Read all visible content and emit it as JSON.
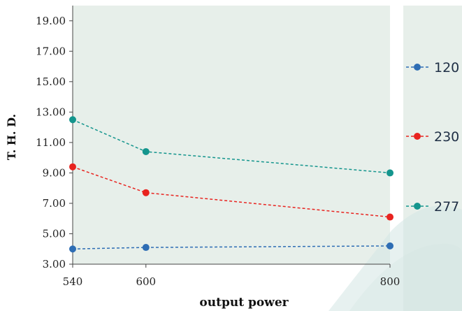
{
  "chart_data": {
    "type": "line",
    "xlabel": "output power",
    "ylabel": "T. H. D.",
    "x": [
      540,
      600,
      800
    ],
    "x_tick_labels": [
      "540",
      "600",
      "800"
    ],
    "y_ticks": [
      3,
      5,
      7,
      9,
      11,
      13,
      15,
      17,
      19
    ],
    "y_tick_labels": [
      "3.00",
      "5.00",
      "7.00",
      "9.00",
      "11.00",
      "13.00",
      "15.00",
      "17.00",
      "19.00"
    ],
    "ylim": [
      3,
      20
    ],
    "grid": false,
    "legend_placement": "right",
    "series": [
      {
        "name": "120",
        "color": "#2e6db4",
        "values": [
          4.0,
          4.1,
          4.2
        ]
      },
      {
        "name": "230",
        "color": "#e8231f",
        "values": [
          9.4,
          7.7,
          6.1
        ]
      },
      {
        "name": "277",
        "color": "#14958d",
        "values": [
          12.5,
          10.4,
          9.0
        ]
      }
    ]
  },
  "theme": {
    "plot_background": "#e7efea",
    "legend_background": "#e7efea",
    "watermark_color": "#d3e6e3"
  }
}
